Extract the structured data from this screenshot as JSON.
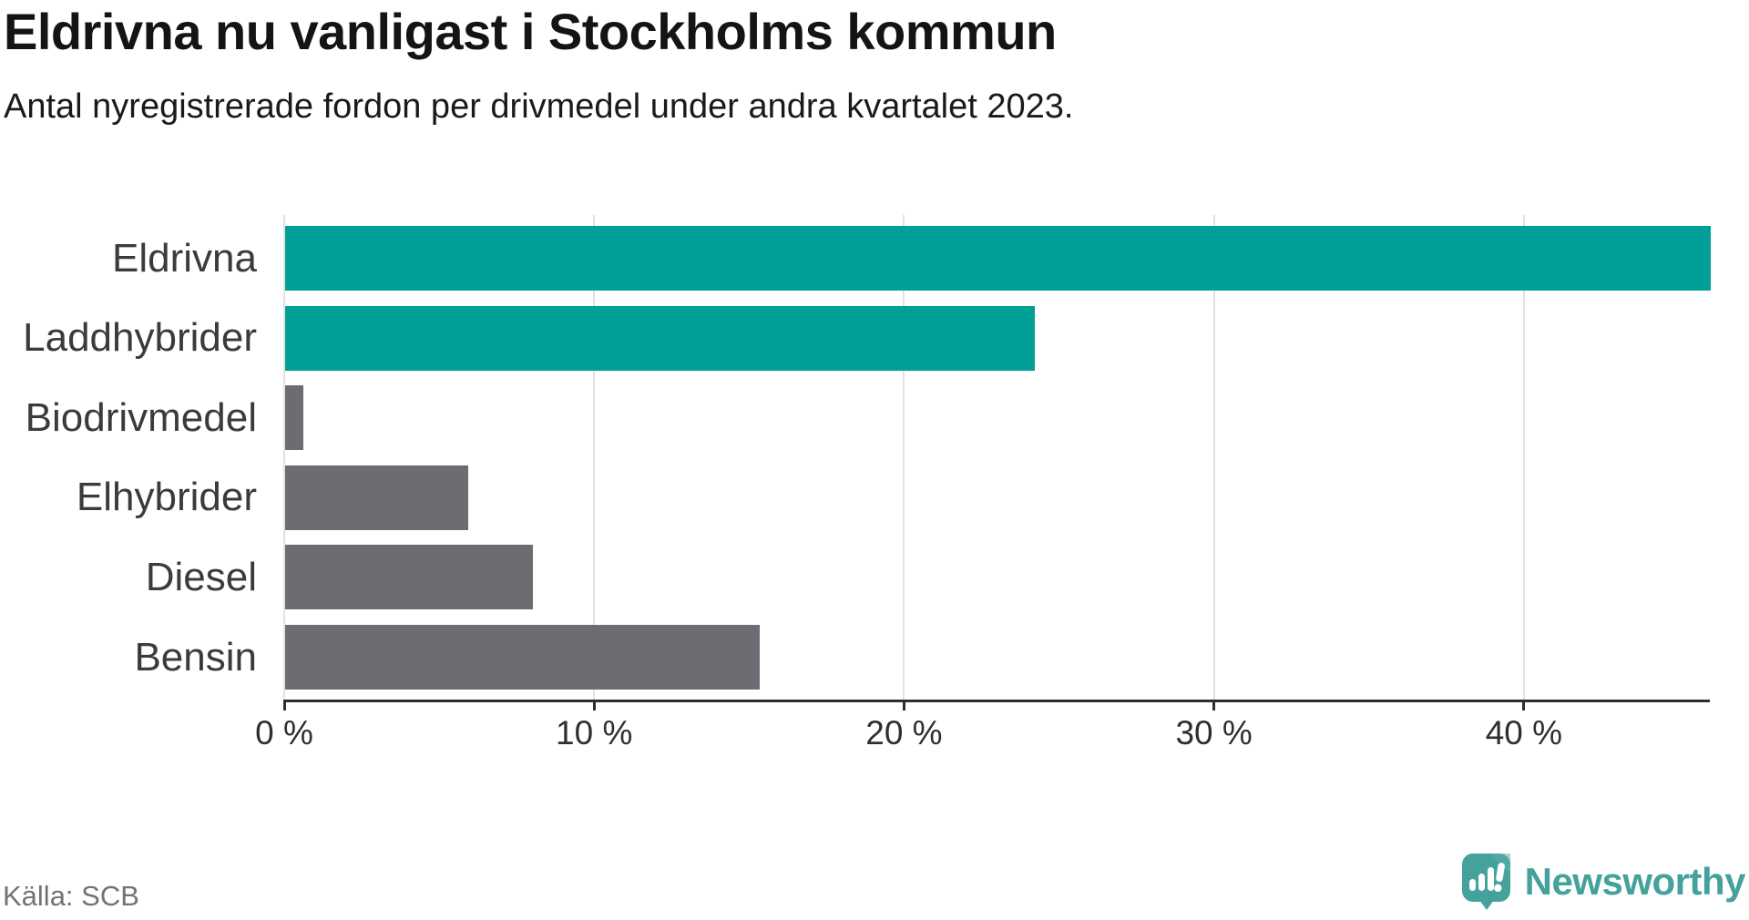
{
  "header": {
    "title": "Eldrivna nu vanligast i Stockholms kommun",
    "subtitle": "Antal nyregistrerade fordon per drivmedel under andra kvartalet 2023."
  },
  "chart_data": {
    "type": "bar",
    "orientation": "horizontal",
    "title": "Eldrivna nu vanligast i Stockholms kommun",
    "subtitle": "Antal nyregistrerade fordon per drivmedel under andra kvartalet 2023.",
    "categories": [
      "Eldrivna",
      "Laddhybrider",
      "Biodrivmedel",
      "Elhybrider",
      "Diesel",
      "Bensin"
    ],
    "values": [
      46.0,
      24.2,
      0.6,
      5.9,
      8.0,
      15.3
    ],
    "unit": "%",
    "xlim": [
      0,
      46
    ],
    "xticks": [
      0,
      10,
      20,
      30,
      40
    ],
    "xtick_labels": [
      "0 %",
      "10 %",
      "20 %",
      "30 %",
      "40 %"
    ],
    "grid": "vertical-light",
    "legend": "none",
    "bar_colors": [
      "#00a099",
      "#00a099",
      "#6c6c72",
      "#6c6c72",
      "#6c6c72",
      "#6c6c72"
    ],
    "accent_color": "#00a099",
    "default_color": "#6c6c72"
  },
  "footer": {
    "source": "Källa: SCB",
    "brand": "Newsworthy",
    "brand_color": "#44a19b"
  }
}
